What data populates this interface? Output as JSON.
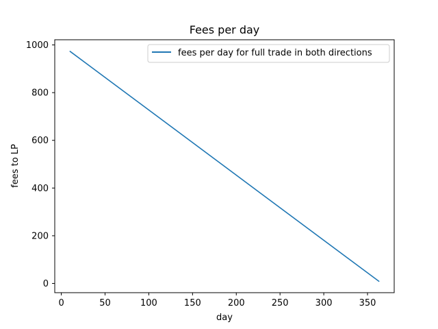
{
  "chart_data": {
    "type": "line",
    "title": "Fees per day",
    "xlabel": "day",
    "ylabel": "fees to LP",
    "xlim": [
      -7.5,
      380.5
    ],
    "ylim": [
      -38.7,
      1021.7
    ],
    "xticks": [
      0,
      50,
      100,
      150,
      200,
      250,
      300,
      350
    ],
    "yticks": [
      0,
      200,
      400,
      600,
      800,
      1000
    ],
    "grid": false,
    "legend_position": "top-right",
    "series": [
      {
        "name": "fees per day for full trade in both directions",
        "color": "#1f77b4",
        "x": [
          10,
          363
        ],
        "y": [
          973,
          9
        ]
      }
    ]
  }
}
